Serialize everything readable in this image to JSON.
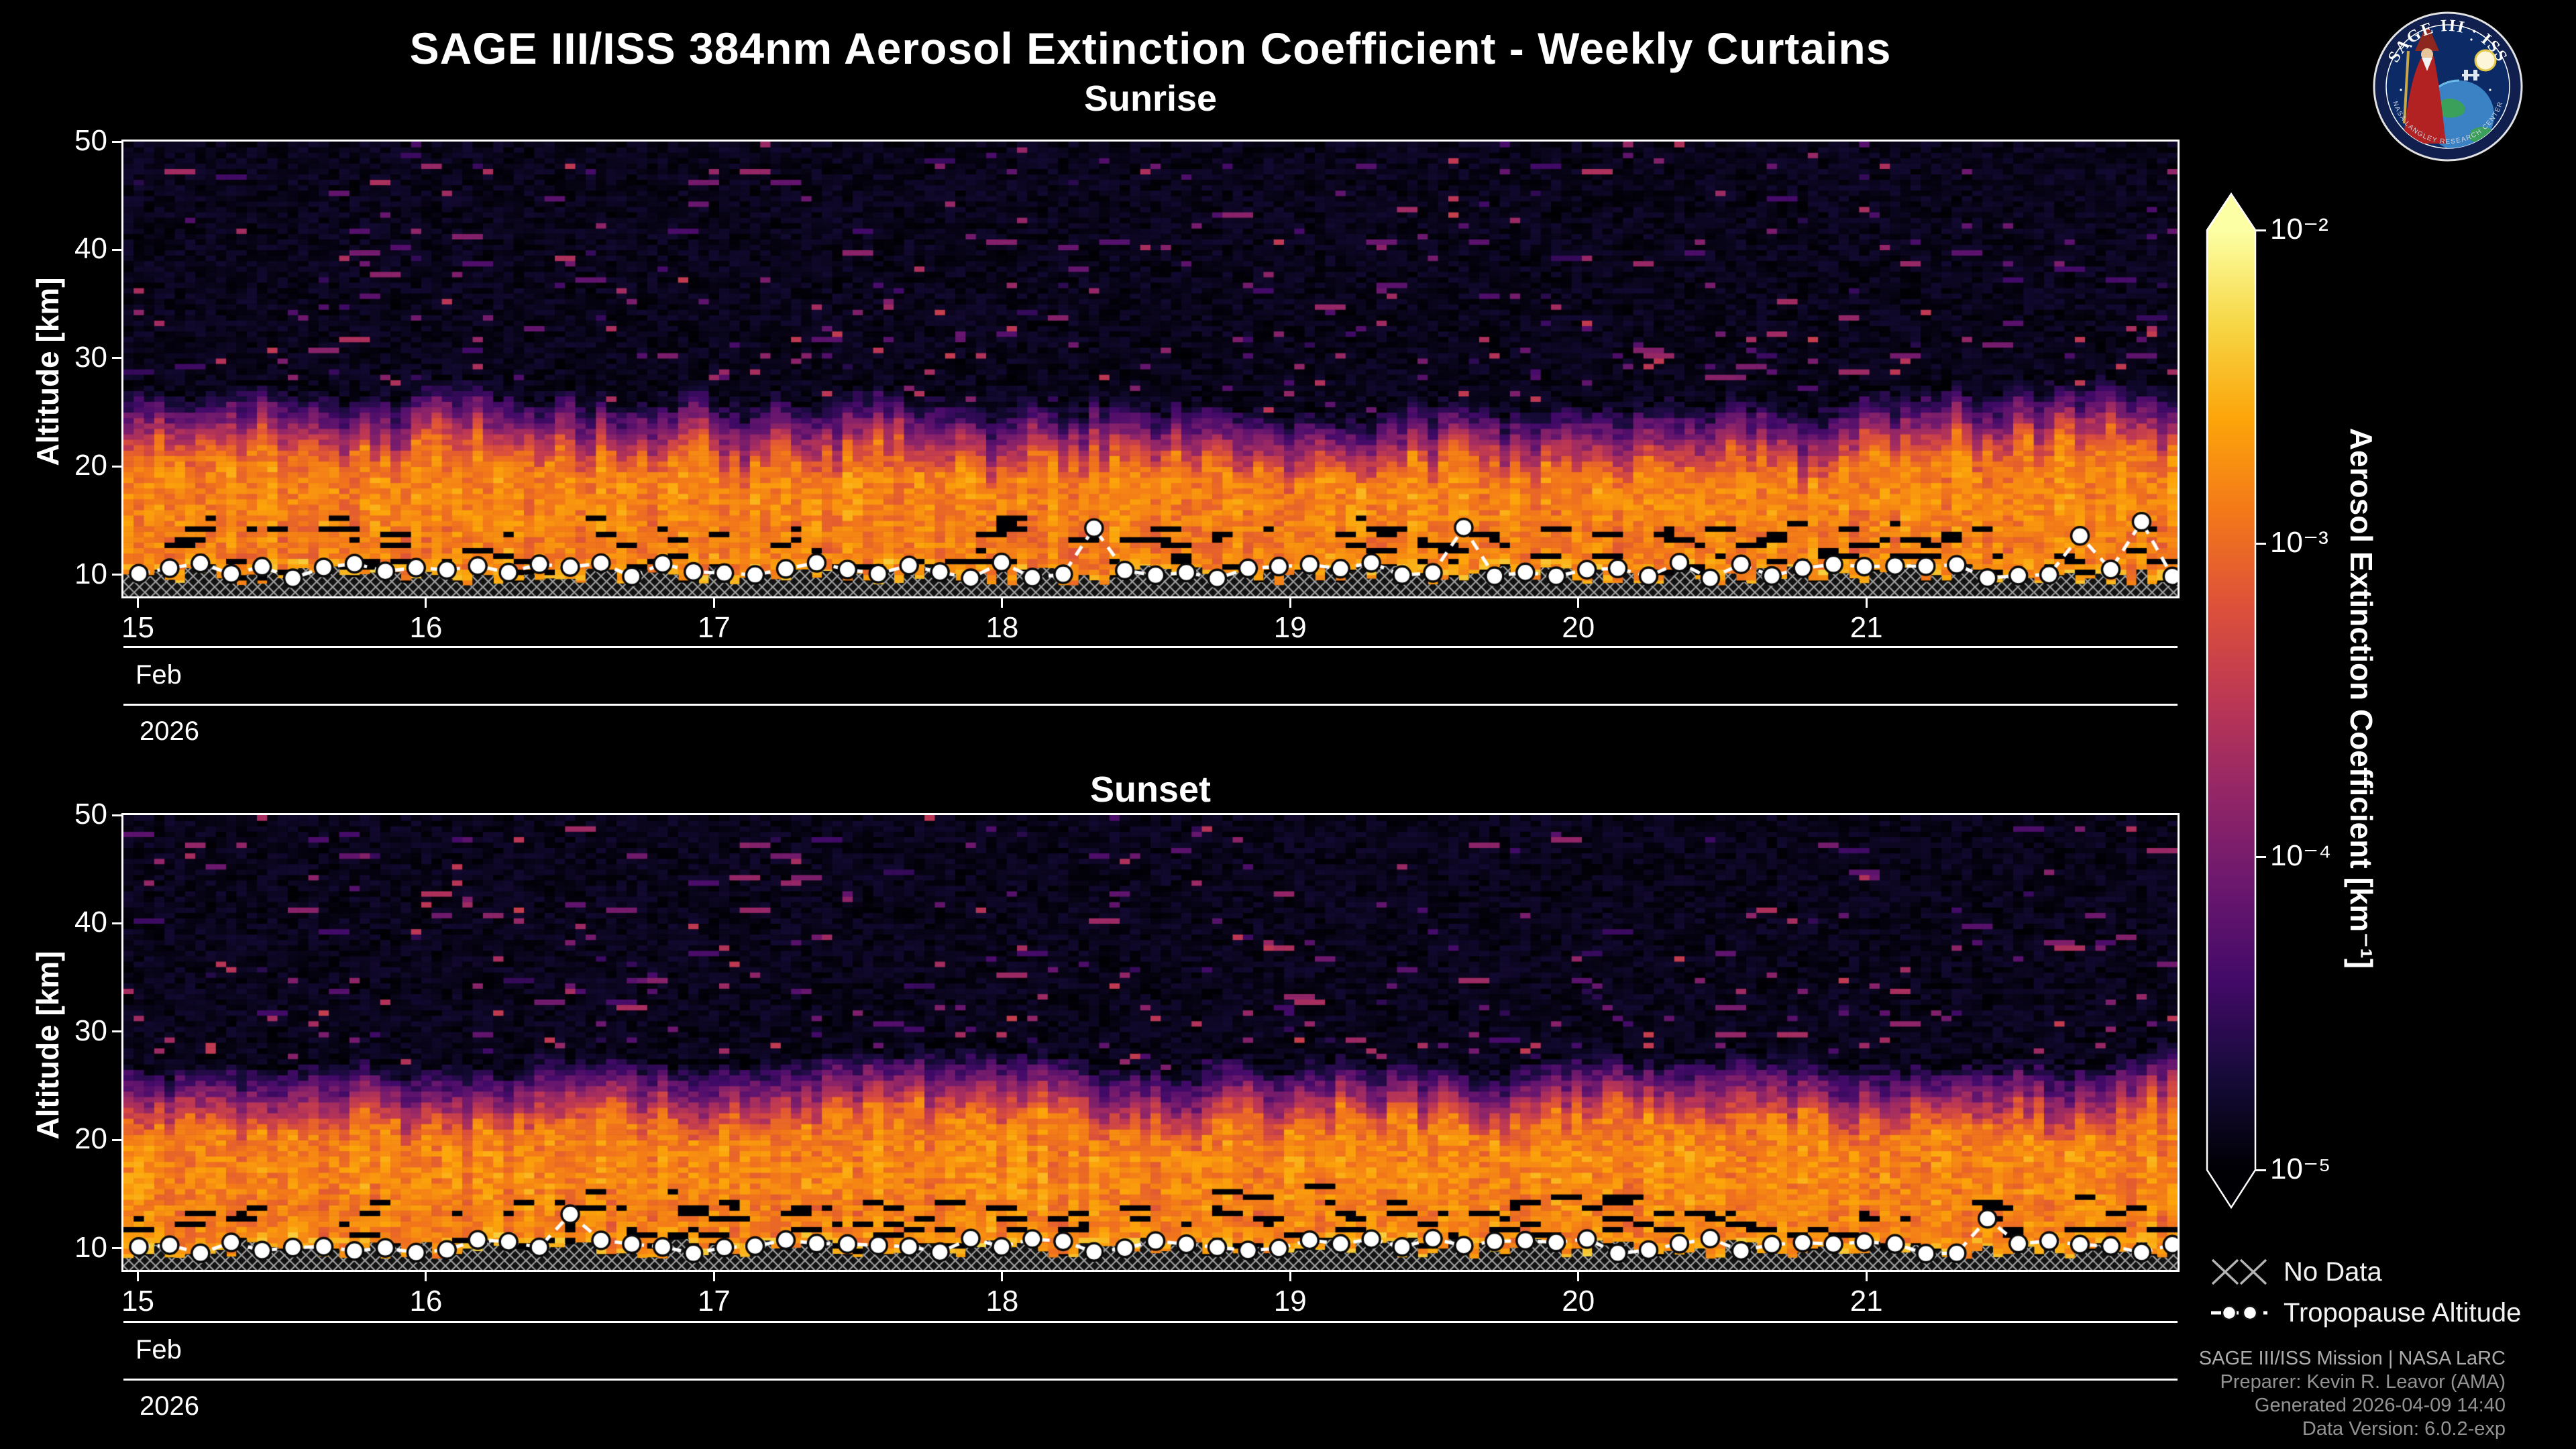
{
  "page": {
    "background": "#000000"
  },
  "logo": {
    "line1": "SAGE III · ISS",
    "ring_text": "NASA LANGLEY RESEARCH CENTER"
  },
  "credits": {
    "lines": [
      "SAGE III/ISS Mission | NASA LaRC",
      "Preparer: Kevin R. Leavor (AMA)",
      "Generated 2026-04-09 14:40",
      "Data Version: 6.0.2-exp"
    ]
  },
  "legend": {
    "no_data": "No Data",
    "tropopause": "Tropopause Altitude"
  },
  "chart_data": {
    "type": "heatmap",
    "title": "SAGE III/ISS 384nm Aerosol Extinction Coefficient - Weekly Curtains",
    "x_axis": {
      "tick_labels": [
        "15",
        "16",
        "17",
        "18",
        "19",
        "20",
        "21"
      ],
      "tick_values": [
        15,
        16,
        17,
        18,
        19,
        20,
        21
      ],
      "range": [
        14.95,
        22.08
      ],
      "month_label": "Feb",
      "year_label": "2026"
    },
    "y_axis": {
      "label": "Altitude [km]",
      "tick_values": [
        10,
        20,
        30,
        40,
        50
      ],
      "range": [
        8,
        50
      ]
    },
    "colorbar": {
      "label": "Aerosol Extinction Coefficient [km⁻¹]",
      "tick_labels": [
        "10⁻²",
        "10⁻³",
        "10⁻⁴",
        "10⁻⁵"
      ],
      "log10_range": [
        -5,
        -2
      ],
      "colormap": "inferno",
      "extend": "both"
    },
    "grid": {
      "ncols": 200,
      "nrows": 84
    },
    "panels": [
      {
        "title": "Sunrise",
        "seed": 11,
        "layer_top_km": 27.2,
        "layer_top_roughness": 1.0,
        "fade_width_km": 6,
        "peak_log10": -3.0,
        "no_data_top_km": [
          9.0,
          10.9
        ],
        "tropopause": {
          "base_km": 10.4,
          "jitter_km": 1.5,
          "spike_prob": 0.07,
          "spike_min_km": 12.5,
          "spike_max_km": 16.5
        }
      },
      {
        "title": "Sunset",
        "seed": 77,
        "layer_top_km": 27.8,
        "layer_top_roughness": 0.65,
        "fade_width_km": 6,
        "peak_log10": -3.0,
        "no_data_top_km": [
          9.0,
          10.9
        ],
        "tropopause": {
          "base_km": 10.2,
          "jitter_km": 1.4,
          "spike_prob": 0.05,
          "spike_min_km": 12.0,
          "spike_max_km": 13.8
        }
      }
    ]
  }
}
